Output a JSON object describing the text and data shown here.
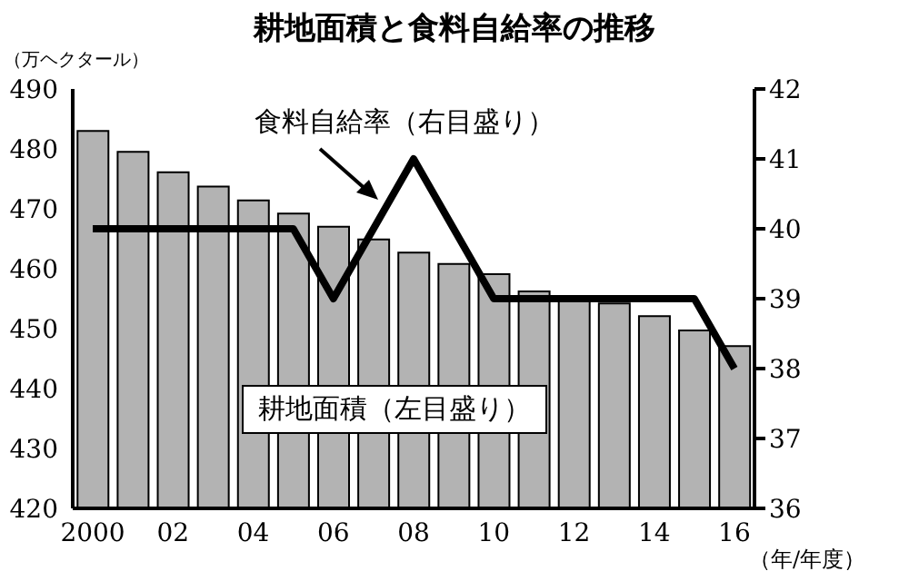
{
  "chart_data": {
    "type": "bar",
    "title": "耕地面積と食料自給率の推移",
    "ylabel": "（万ヘクタール）",
    "xlabel": "（年/年度）",
    "categories": [
      "2000",
      null,
      "02",
      null,
      "04",
      null,
      "06",
      null,
      "08",
      null,
      "10",
      null,
      "12",
      null,
      "14",
      null,
      "16"
    ],
    "series": [
      {
        "color": "#b3b3b3",
        "values": [
          483,
          479.5,
          476.1,
          473.7,
          471.4,
          469.2,
          467.0,
          464.9,
          462.7,
          460.8,
          459.1,
          456.2,
          454.9,
          454.2,
          452.1,
          449.7,
          447.1
        ]
      },
      {
        "type": "line",
        "axis": "y2",
        "color": "#000000",
        "values": [
          40,
          40,
          40,
          40,
          40,
          40,
          39,
          40,
          41,
          40,
          39,
          39,
          39,
          39,
          39,
          39,
          38
        ]
      }
    ],
    "ylim": [
      420,
      490
    ],
    "yticks": [
      420,
      430,
      440,
      450,
      460,
      470,
      480,
      490
    ],
    "y2lim": [
      36,
      42
    ],
    "y2ticks": [
      36,
      37,
      38,
      39,
      40,
      41,
      42
    ],
    "annotations": [
      "食料自給率（右目盛り）",
      "耕地面積（左目盛り）"
    ],
    "grid": false,
    "legend": false
  }
}
